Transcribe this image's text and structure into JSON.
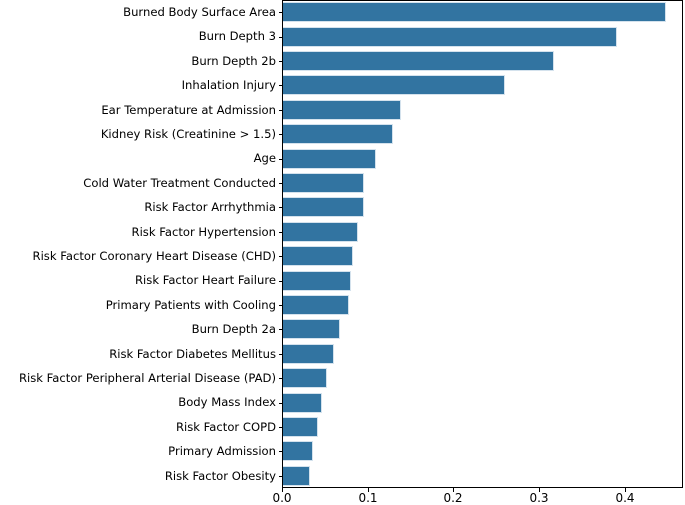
{
  "figure": {
    "background_color": "#ffffff",
    "spine_color": "#000000",
    "text_color": "#000000"
  },
  "chart_data": {
    "type": "bar",
    "orientation": "horizontal",
    "title": "",
    "xlabel": "",
    "ylabel": "",
    "grid": false,
    "legend": null,
    "bar_color": "#3274a1",
    "bar_edge_color": "#d4e2ed",
    "xlim": [
      0,
      0.4665
    ],
    "xtick_labels": [
      "0.0",
      "0.1",
      "0.2",
      "0.3",
      "0.4"
    ],
    "categories": [
      "Burned Body Surface Area",
      "Burn Depth 3",
      "Burn Depth 2b",
      "Inhalation Injury",
      "Ear Temperature at Admission",
      "Kidney Risk (Creatinine > 1.5)",
      "Age",
      "Cold Water Treatment Conducted",
      "Risk Factor Arrhythmia",
      "Risk Factor Hypertension",
      "Risk Factor Coronary Heart Disease (CHD)",
      "Risk Factor Heart Failure",
      "Primary Patients with Cooling",
      "Burn Depth 2a",
      "Risk Factor Diabetes Mellitus",
      "Risk Factor Peripheral Arterial Disease (PAD)",
      "Body Mass Index",
      "Risk Factor COPD",
      "Primary Admission",
      "Risk Factor Obesity"
    ],
    "values": [
      0.447,
      0.39,
      0.316,
      0.259,
      0.138,
      0.128,
      0.109,
      0.094,
      0.095,
      0.088,
      0.082,
      0.079,
      0.077,
      0.067,
      0.059,
      0.051,
      0.046,
      0.041,
      0.035,
      0.032
    ]
  }
}
